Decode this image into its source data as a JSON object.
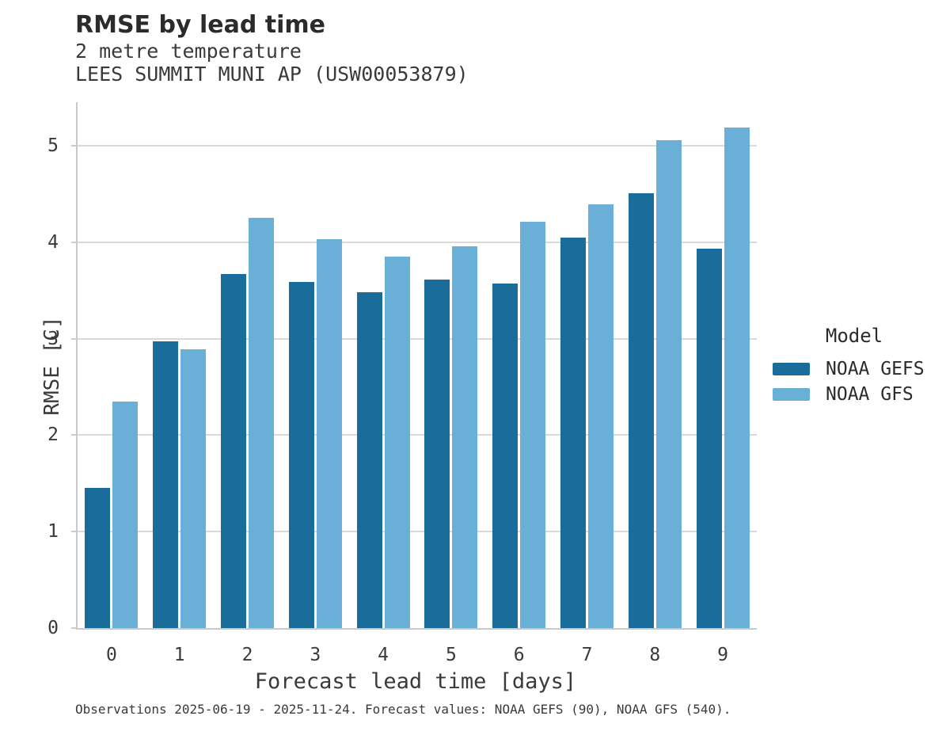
{
  "header": {
    "title": "RMSE by lead time",
    "subtitle1": "2 metre temperature",
    "subtitle2": "LEES SUMMIT MUNI AP (USW00053879)"
  },
  "footer": {
    "caption": "Observations 2025-06-19 - 2025-11-24. Forecast values: NOAA GEFS (90), NOAA GFS (540)."
  },
  "colors": {
    "gefs_dark_blue": "#1A6C9B",
    "gfs_light_blue": "#69AFD7",
    "gridline": "#D9D9D9",
    "axis_spine": "#C9C9C9",
    "text": "#3A3A3A"
  },
  "chart_data": {
    "type": "bar",
    "title": "RMSE by lead time",
    "subtitle": [
      "2 metre temperature",
      "LEES SUMMIT MUNI AP (USW00053879)"
    ],
    "categories": [
      0,
      1,
      2,
      3,
      4,
      5,
      6,
      7,
      8,
      9
    ],
    "series": [
      {
        "name": "NOAA GEFS",
        "color": "#1A6C9B",
        "values": [
          1.45,
          2.97,
          3.67,
          3.59,
          3.48,
          3.61,
          3.57,
          4.05,
          4.51,
          3.93
        ]
      },
      {
        "name": "NOAA GFS",
        "color": "#69AFD7",
        "values": [
          2.35,
          2.89,
          4.25,
          4.03,
          3.85,
          3.96,
          4.21,
          4.39,
          5.06,
          5.19
        ]
      }
    ],
    "xlabel": "Forecast lead time [days]",
    "ylabel": "RMSE [C]",
    "ylim": [
      0,
      5.45
    ],
    "yticks": [
      0,
      1,
      2,
      3,
      4,
      5
    ],
    "grid": true,
    "legend": {
      "title": "Model",
      "position": "right",
      "entries": [
        "NOAA GEFS",
        "NOAA GFS"
      ]
    },
    "caption": "Observations 2025-06-19 - 2025-11-24. Forecast values: NOAA GEFS (90), NOAA GFS (540)."
  }
}
